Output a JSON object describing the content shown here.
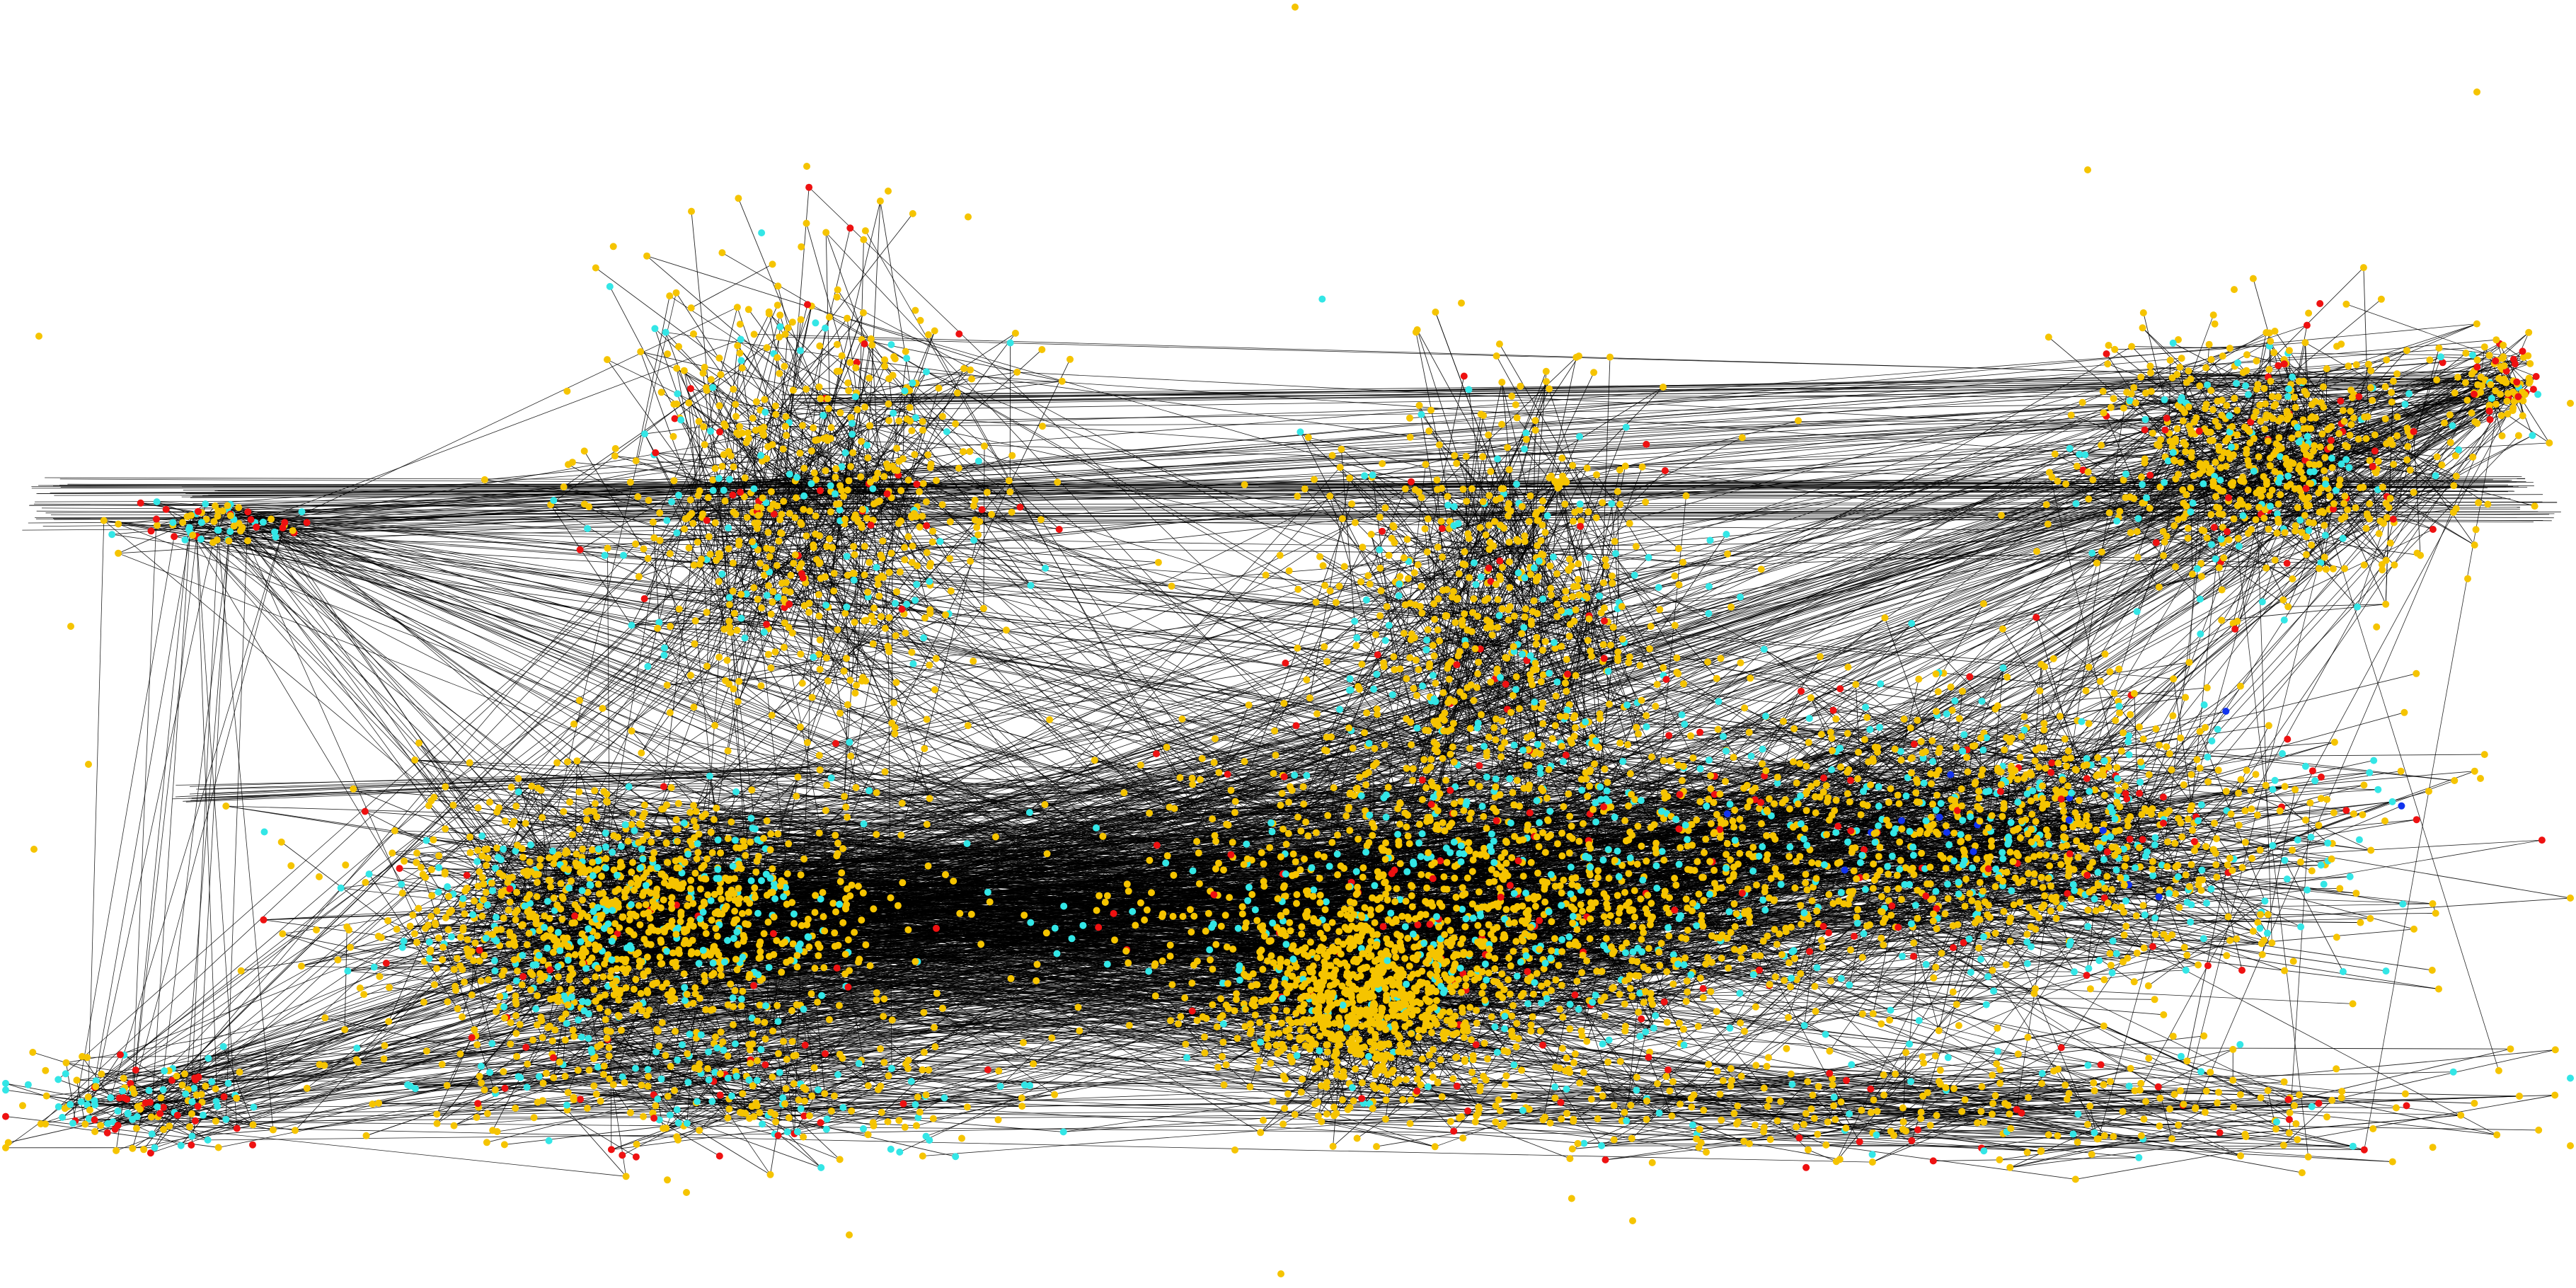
{
  "graph": {
    "kind": "network-visualization",
    "background": "#ffffff",
    "edge_color": "#000000",
    "node_colors": {
      "primary": "#f5c400",
      "secondary": "#33e6e6",
      "tertiary": "#ee1111",
      "rare_blue": "#1133ee",
      "rare_magenta": "#cc33cc",
      "rare_orange": "#ff8800"
    },
    "clusters": [
      {
        "id": "west-island",
        "color_mix": "mixed-red-cyan"
      },
      {
        "id": "west-chain",
        "color_mix": "yellow-cyan-red"
      },
      {
        "id": "north-peak-a",
        "color_mix": "yellow-cyan-red"
      },
      {
        "id": "central-west-mass",
        "color_mix": "yellow-cyan"
      },
      {
        "id": "north-peak-b",
        "color_mix": "yellow-cyan"
      },
      {
        "id": "central-mass",
        "color_mix": "yellow-cyan-red"
      },
      {
        "id": "south-central-hub",
        "color_mix": "yellow"
      },
      {
        "id": "east-mass",
        "color_mix": "yellow-cyan-red-blue"
      },
      {
        "id": "north-east-peak",
        "color_mix": "yellow-cyan-red"
      },
      {
        "id": "far-east",
        "color_mix": "yellow-red"
      },
      {
        "id": "south-west-fringe",
        "color_mix": "yellow-cyan-red"
      },
      {
        "id": "south-fringe",
        "color_mix": "yellow-cyan"
      }
    ]
  }
}
